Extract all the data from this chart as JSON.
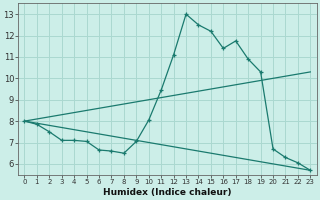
{
  "xlabel": "Humidex (Indice chaleur)",
  "background_color": "#cceee8",
  "line_color": "#1a7a6e",
  "grid_color": "#aad8d0",
  "xlim": [
    -0.5,
    23.5
  ],
  "ylim": [
    5.5,
    13.5
  ],
  "xticks": [
    0,
    1,
    2,
    3,
    4,
    5,
    6,
    7,
    8,
    9,
    10,
    11,
    12,
    13,
    14,
    15,
    16,
    17,
    18,
    19,
    20,
    21,
    22,
    23
  ],
  "yticks": [
    6,
    7,
    8,
    9,
    10,
    11,
    12,
    13
  ],
  "series1_x": [
    0,
    1,
    2,
    3,
    4,
    5,
    6,
    7,
    8,
    9,
    10,
    11,
    12,
    13,
    14,
    15,
    16,
    17,
    18,
    19,
    20,
    21,
    22,
    23
  ],
  "series1_y": [
    8.0,
    7.85,
    7.5,
    7.1,
    7.1,
    7.05,
    6.65,
    6.6,
    6.5,
    7.05,
    8.05,
    9.45,
    11.1,
    13.0,
    12.5,
    12.2,
    11.4,
    11.75,
    10.9,
    10.3,
    6.7,
    6.3,
    6.05,
    5.7
  ],
  "series2_x": [
    0,
    23
  ],
  "series2_y": [
    8.0,
    10.3
  ],
  "series3_x": [
    0,
    23
  ],
  "series3_y": [
    8.0,
    5.7
  ]
}
